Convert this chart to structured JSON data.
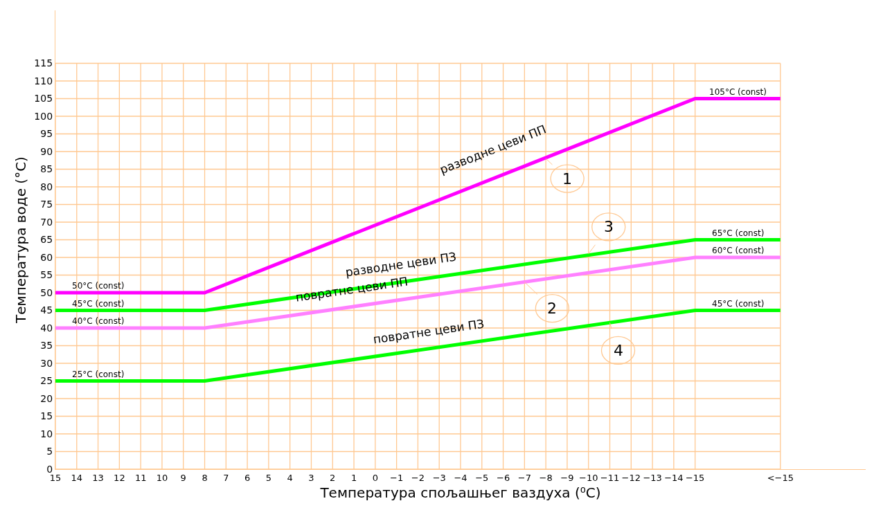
{
  "chart_data": {
    "type": "line",
    "xlabel": "Температура спољашњег ваздуха (⁰C)",
    "ylabel": "Температура воде (°C)",
    "x": [
      15,
      8,
      -15,
      -19
    ],
    "series": [
      {
        "color": "#ff00ff",
        "values": [
          50,
          50,
          105,
          105
        ]
      },
      {
        "color": "#00ff00",
        "values": [
          45,
          45,
          65,
          65
        ]
      },
      {
        "color": "#ff80ff",
        "values": [
          40,
          40,
          60,
          60
        ]
      },
      {
        "color": "#00ff00",
        "values": [
          25,
          25,
          45,
          45
        ]
      }
    ],
    "xlim": [
      15,
      -23
    ],
    "ylim": [
      0,
      130
    ],
    "xticks": [
      15,
      14,
      13,
      12,
      11,
      10,
      9,
      8,
      7,
      6,
      5,
      4,
      3,
      2,
      1,
      0,
      -1,
      -2,
      -3,
      -4,
      -5,
      -6,
      -7,
      -8,
      -9,
      -10,
      -11,
      -12,
      -13,
      -14,
      -15,
      {
        "value": -19,
        "label": "<−15"
      }
    ],
    "yticks": [
      0,
      5,
      10,
      15,
      20,
      25,
      30,
      35,
      40,
      45,
      50,
      55,
      60,
      65,
      70,
      75,
      80,
      85,
      90,
      95,
      100,
      105,
      110,
      115
    ],
    "grid": true,
    "marker": "none",
    "line_style": "solid",
    "annotations": [
      {
        "text": "50°C (const)",
        "x": 13,
        "y": 50
      },
      {
        "text": "45°C (const)",
        "x": 13,
        "y": 45
      },
      {
        "text": "40°C (const)",
        "x": 13,
        "y": 40
      },
      {
        "text": "25°C (const)",
        "x": 13,
        "y": 25
      },
      {
        "text": "105°C (const)",
        "x": -17,
        "y": 105
      },
      {
        "text": "65°C (const)",
        "x": -17,
        "y": 65
      },
      {
        "text": "60°C (const)",
        "x": -17,
        "y": 60
      },
      {
        "text": "45°C (const)",
        "x": -17,
        "y": 45
      },
      {
        "text": "разводне цеви ПП",
        "x": -5.5,
        "y": 82
      },
      {
        "text": "разводне цеви ПЗ",
        "x": -1.2,
        "y": 53
      },
      {
        "text": "повратне цеви ПП",
        "x": 1.1,
        "y": 46
      },
      {
        "text": "повратне цеви ПЗ",
        "x": -2.5,
        "y": 34
      },
      {
        "text": "1",
        "x": -8,
        "y": 88
      },
      {
        "text": "2",
        "x": -7,
        "y": 53
      },
      {
        "text": "3",
        "x": -10,
        "y": 61
      },
      {
        "text": "4",
        "x": -11,
        "y": 41.5
      }
    ]
  }
}
